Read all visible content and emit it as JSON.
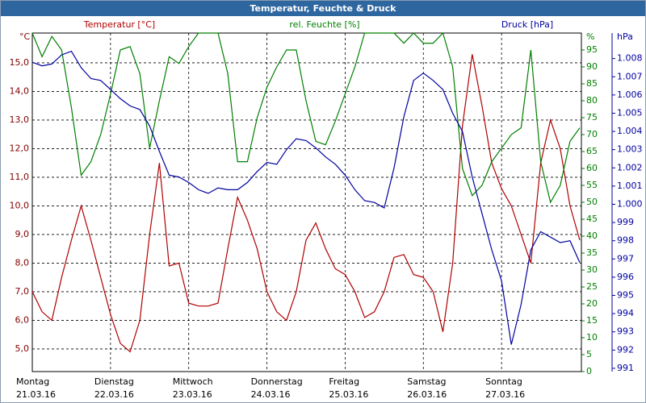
{
  "chart_data": {
    "type": "line",
    "title": "Temperatur, Feuchte & Druck",
    "x": [
      0,
      3,
      6,
      9,
      12,
      15,
      18,
      21,
      24,
      27,
      30,
      33,
      36,
      39,
      42,
      45,
      48,
      51,
      54,
      57,
      60,
      63,
      66,
      69,
      72,
      75,
      78,
      81,
      84,
      87,
      90,
      93,
      96,
      99,
      102,
      105,
      108,
      111,
      114,
      117,
      120,
      123,
      126,
      129,
      132,
      135,
      138,
      141,
      144,
      147,
      150,
      153,
      156,
      159,
      162,
      165,
      168
    ],
    "xlim": [
      0,
      168.5
    ],
    "xticks": [
      {
        "value": 0,
        "label": "Montag"
      },
      {
        "value": 24,
        "label": "Dienstag"
      },
      {
        "value": 48,
        "label": "Mittwoch"
      },
      {
        "value": 72,
        "label": "Donnerstag"
      },
      {
        "value": 96,
        "label": "Freitag"
      },
      {
        "value": 120,
        "label": "Samstag"
      },
      {
        "value": 144,
        "label": "Sonntag"
      }
    ],
    "xtick_dates": [
      "21.03.16",
      "22.03.16",
      "23.03.16",
      "24.03.16",
      "25.03.16",
      "26.03.16",
      "27.03.16"
    ],
    "ylim": [
      4.21,
      16.04
    ],
    "yticks": [
      {
        "value": 5,
        "label": "5,0"
      },
      {
        "value": 6,
        "label": "6,0"
      },
      {
        "value": 7,
        "label": "7,0"
      },
      {
        "value": 8,
        "label": "8,0"
      },
      {
        "value": 9,
        "label": "9,0"
      },
      {
        "value": 10,
        "label": "10,0"
      },
      {
        "value": 11,
        "label": "11,0"
      },
      {
        "value": 12,
        "label": "12,0"
      },
      {
        "value": 13,
        "label": "13,0"
      },
      {
        "value": 14,
        "label": "14,0"
      },
      {
        "value": 15,
        "label": "15,0"
      }
    ],
    "y_unit": "°C",
    "y2lim": [
      0,
      100
    ],
    "y2ticks": [
      0,
      5,
      10,
      15,
      20,
      25,
      30,
      35,
      40,
      45,
      50,
      55,
      60,
      65,
      70,
      75,
      80,
      85,
      90,
      95
    ],
    "y2_unit": "%",
    "y3lim": [
      990.82,
      1009.4
    ],
    "y3ticks": [
      991,
      992,
      993,
      994,
      995,
      996,
      997,
      998,
      999,
      {
        "value": 1000,
        "label": "1.000"
      },
      {
        "value": 1001,
        "label": "1.001"
      },
      {
        "value": 1002,
        "label": "1.002"
      },
      {
        "value": 1003,
        "label": "1.003"
      },
      {
        "value": 1004,
        "label": "1.004"
      },
      {
        "value": 1005,
        "label": "1.005"
      },
      {
        "value": 1006,
        "label": "1.006"
      },
      {
        "value": 1007,
        "label": "1.007"
      },
      {
        "value": 1008,
        "label": "1.008"
      }
    ],
    "y3_unit": "hPa",
    "grid": true,
    "series": [
      {
        "name": "Temperatur [°C]",
        "color": "#b00000",
        "axis": "y",
        "values": [
          7.0,
          6.3,
          6.0,
          7.5,
          8.8,
          10.0,
          8.8,
          7.5,
          6.2,
          5.2,
          4.9,
          6.0,
          9.0,
          11.5,
          7.9,
          8.0,
          6.6,
          6.5,
          6.5,
          6.6,
          8.5,
          10.3,
          9.5,
          8.5,
          7.0,
          6.3,
          6.0,
          7.0,
          8.8,
          9.4,
          8.5,
          7.8,
          7.6,
          7.0,
          6.1,
          6.3,
          7.0,
          8.2,
          8.3,
          7.6,
          7.5,
          7.0,
          5.6,
          8.0,
          12.8,
          15.3,
          13.5,
          11.5,
          10.6,
          10.0,
          9.0,
          8.0,
          11.5,
          13.0,
          12.0,
          10.0,
          8.8
        ]
      },
      {
        "name": "rel. Feuchte [%]",
        "color": "#008000",
        "axis": "y2",
        "values": [
          100,
          93,
          99,
          95,
          78,
          58,
          62,
          70,
          82,
          95,
          96,
          88,
          66,
          80,
          93,
          91,
          96,
          100,
          100,
          100,
          88,
          62,
          62,
          75,
          84,
          90,
          95,
          95,
          80,
          68,
          67,
          74,
          82,
          90,
          100,
          100,
          100,
          100,
          97,
          100,
          97,
          97,
          100,
          90,
          60,
          52,
          55,
          62,
          66,
          70,
          72,
          95,
          62,
          50,
          55,
          68,
          72
        ]
      },
      {
        "name": "Druck [hPa]",
        "color": "#0000a0",
        "axis": "y3",
        "values": [
          1007.8,
          1007.6,
          1007.7,
          1008.2,
          1008.4,
          1007.5,
          1006.9,
          1006.8,
          1006.3,
          1005.8,
          1005.4,
          1005.2,
          1004.3,
          1002.9,
          1001.6,
          1001.5,
          1001.2,
          1000.8,
          1000.6,
          1000.9,
          1000.8,
          1000.8,
          1001.2,
          1001.8,
          1002.3,
          1002.2,
          1003.0,
          1003.6,
          1003.5,
          1003.1,
          1002.6,
          1002.2,
          1001.6,
          1000.8,
          1000.2,
          1000.1,
          999.8,
          1002.0,
          1004.8,
          1006.8,
          1007.2,
          1006.8,
          1006.3,
          1005.0,
          1004.0,
          1001.5,
          999.5,
          997.5,
          995.8,
          992.3,
          994.5,
          997.5,
          998.5,
          998.2,
          997.9,
          998.0,
          996.8
        ]
      }
    ]
  }
}
